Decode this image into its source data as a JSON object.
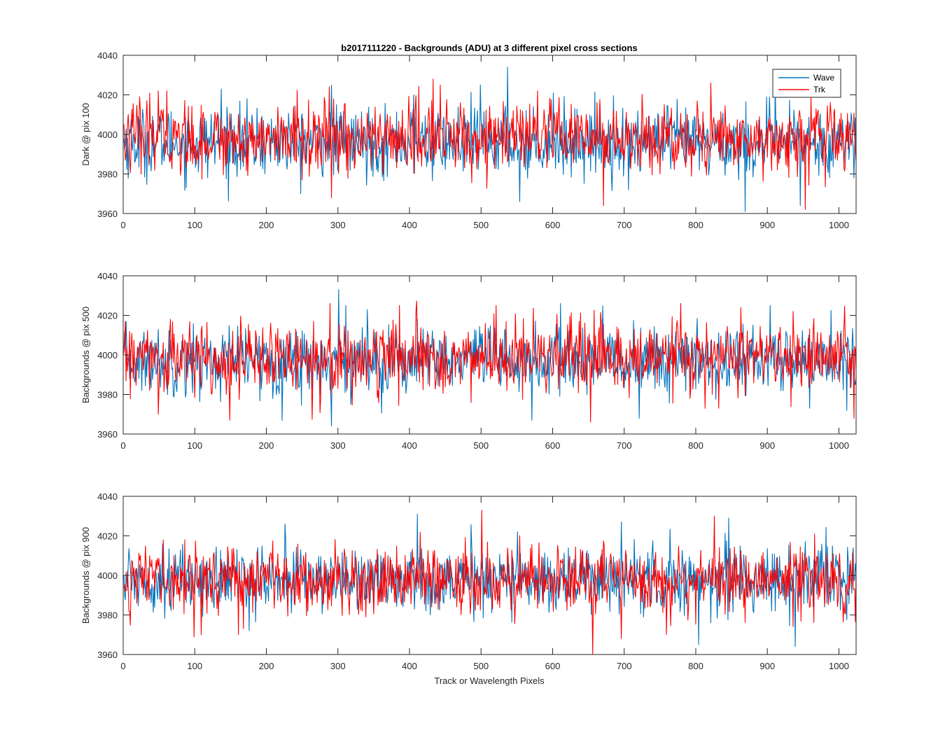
{
  "chart_data": {
    "type": "line",
    "title": "b2017111220 - Backgrounds (ADU) at 3 different pixel cross sections",
    "xlabel": "Track or Wavelength Pixels",
    "grid": false,
    "legend_location": "top-right",
    "colors": {
      "Wave": "#0072BD",
      "Trk": "#FF0000"
    },
    "subplots": [
      {
        "ylabel": "Dark @ pix 100",
        "xlim": [
          0,
          1024
        ],
        "ylim": [
          3960,
          4040
        ],
        "xticks": [
          0,
          100,
          200,
          300,
          400,
          500,
          600,
          700,
          800,
          900,
          1000
        ],
        "yticks": [
          3960,
          3980,
          4000,
          4020,
          4040
        ],
        "legend": true,
        "series": [
          {
            "name": "Wave",
            "mean": 3996,
            "std": 8.5,
            "samples": 1024,
            "spikes": [
              [
                136,
                4023
              ],
              [
                290,
                4025
              ],
              [
                405,
                4020
              ],
              [
                498,
                4025
              ],
              [
                536,
                4034
              ],
              [
                553,
                3966
              ],
              [
                600,
                4021
              ],
              [
                705,
                3972
              ],
              [
                868,
                3961
              ],
              [
                910,
                4025
              ],
              [
                945,
                3964
              ],
              [
                1020,
                3978
              ]
            ]
          },
          {
            "name": "Trk",
            "mean": 3998,
            "std": 9,
            "samples": 1024,
            "spikes": [
              [
                48,
                4022
              ],
              [
                60,
                4022
              ],
              [
                290,
                3968
              ],
              [
                432,
                4028
              ],
              [
                442,
                4025
              ],
              [
                578,
                4022
              ],
              [
                670,
                3964
              ],
              [
                820,
                4026
              ],
              [
                952,
                3962
              ],
              [
                960,
                4019
              ]
            ]
          }
        ]
      },
      {
        "ylabel": "Backgrounds @ pix 500",
        "xlim": [
          0,
          1024
        ],
        "ylim": [
          3960,
          4040
        ],
        "xticks": [
          0,
          100,
          200,
          300,
          400,
          500,
          600,
          700,
          800,
          900,
          1000
        ],
        "yticks": [
          3960,
          3980,
          4000,
          4020,
          4040
        ],
        "legend": false,
        "series": [
          {
            "name": "Wave",
            "mean": 3997,
            "std": 8.5,
            "samples": 1024,
            "spikes": [
              [
                290,
                3964
              ],
              [
                300,
                4033
              ],
              [
                310,
                4025
              ],
              [
                570,
                3967
              ],
              [
                610,
                4026
              ],
              [
                720,
                3968
              ],
              [
                903,
                4025
              ],
              [
                1010,
                3972
              ]
            ]
          },
          {
            "name": "Trk",
            "mean": 3998,
            "std": 9,
            "samples": 1024,
            "spikes": [
              [
                48,
                3970
              ],
              [
                148,
                3967
              ],
              [
                288,
                4026
              ],
              [
                385,
                4025
              ],
              [
                520,
                4025
              ],
              [
                652,
                3966
              ],
              [
                778,
                4026
              ],
              [
                862,
                4024
              ],
              [
                935,
                4022
              ],
              [
                1020,
                3968
              ]
            ]
          }
        ]
      },
      {
        "ylabel": "Backgrounds @ pix 900",
        "xlim": [
          0,
          1024
        ],
        "ylim": [
          3960,
          4040
        ],
        "xticks": [
          0,
          100,
          200,
          300,
          400,
          500,
          600,
          700,
          800,
          900,
          1000
        ],
        "yticks": [
          3960,
          3980,
          4000,
          4020,
          4040
        ],
        "legend": false,
        "series": [
          {
            "name": "Wave",
            "mean": 3998,
            "std": 8,
            "samples": 1024,
            "spikes": [
              [
                225,
                4026
              ],
              [
                410,
                4031
              ],
              [
                550,
                4022
              ],
              [
                695,
                4027
              ],
              [
                803,
                3965
              ],
              [
                845,
                4029
              ],
              [
                938,
                3964
              ]
            ]
          },
          {
            "name": "Trk",
            "mean": 3998,
            "std": 8.5,
            "samples": 1024,
            "spikes": [
              [
                108,
                3970
              ],
              [
                160,
                3970
              ],
              [
                500,
                4033
              ],
              [
                655,
                3960
              ],
              [
                695,
                3968
              ],
              [
                825,
                4030
              ],
              [
                965,
                4021
              ]
            ]
          }
        ]
      }
    ]
  }
}
